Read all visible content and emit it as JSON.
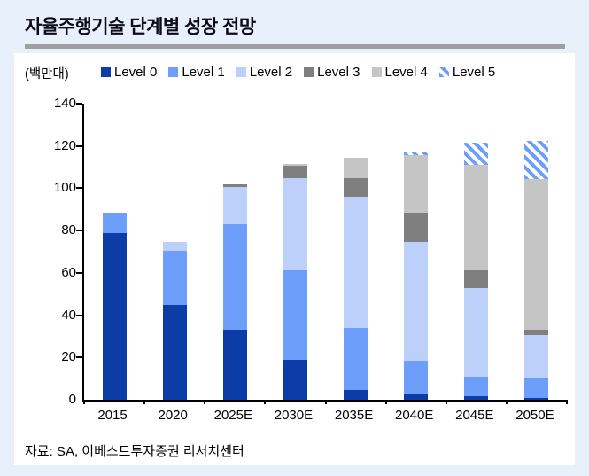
{
  "page": {
    "title": "자율주행기술 단계별 성장 전망",
    "unit_label": "(백만대)",
    "source": "자료: SA, 이베스트투자증권 리서치센터"
  },
  "colors": {
    "background": "#E8F0FB",
    "card": "#FFFFFF",
    "title_text": "#0B0B1A",
    "title_rule": "#9DA0A3",
    "axis": "#000000"
  },
  "chart_data": {
    "type": "bar",
    "stacked": true,
    "title": "자율주행기술 단계별 성장 전망",
    "unit": "백만대",
    "categories": [
      "2015",
      "2020",
      "2025E",
      "2030E",
      "2035E",
      "2040E",
      "2045E",
      "2050E"
    ],
    "series": [
      {
        "name": "Level 0",
        "color": "#0C3CA6",
        "values": [
          79,
          45,
          33,
          19,
          4.5,
          3,
          1.5,
          1
        ]
      },
      {
        "name": "Level 1",
        "color": "#6D9EFA",
        "values": [
          9.5,
          25.5,
          50,
          42,
          29.5,
          15.5,
          9.5,
          9.5
        ]
      },
      {
        "name": "Level 2",
        "color": "#BDD0F9",
        "values": [
          0,
          4,
          17.5,
          44,
          62,
          56,
          42,
          20
        ]
      },
      {
        "name": "Level 3",
        "color": "#7F7F7F",
        "values": [
          0,
          0,
          1.5,
          5.5,
          9,
          14,
          8,
          2.5
        ]
      },
      {
        "name": "Level 4",
        "color": "#C5C5C5",
        "values": [
          0,
          0,
          0,
          1,
          9.5,
          27,
          50,
          71.5
        ]
      },
      {
        "name": "Level 5",
        "color": "#6D9EFA",
        "pattern": "diagonal-stripe",
        "values": [
          0,
          0,
          0,
          0,
          0,
          2,
          10.5,
          18
        ]
      }
    ],
    "totals": [
      88.5,
      74.5,
      102,
      111.5,
      114.5,
      117.5,
      121.5,
      122.5
    ],
    "ylim": [
      0,
      140
    ],
    "ytick_step": 20,
    "legend_position": "top",
    "grid": false
  }
}
